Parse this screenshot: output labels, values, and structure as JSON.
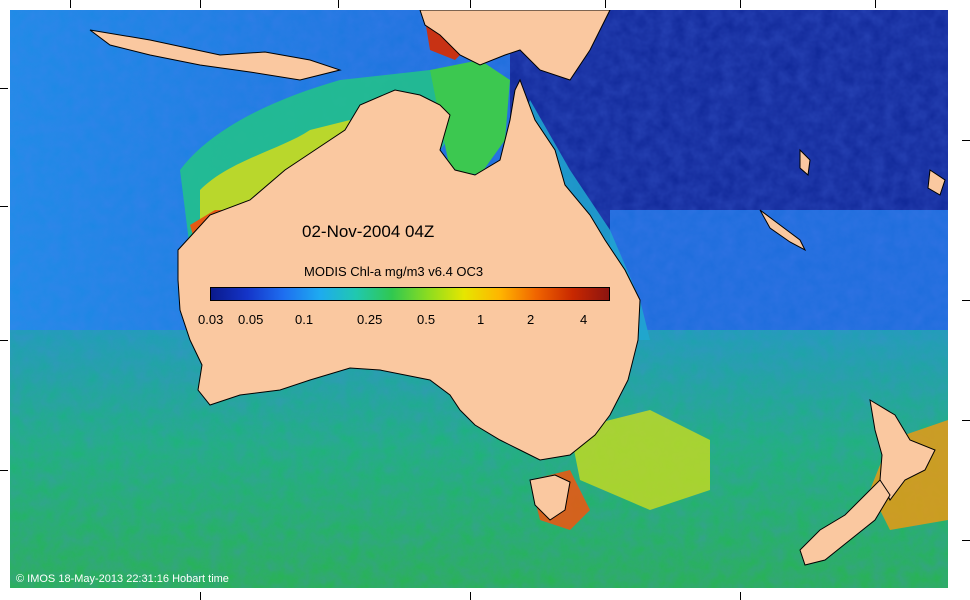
{
  "map": {
    "title": "02-Nov-2004 04Z",
    "product_label": "MODIS Chl-a mg/m3 v6.4 OC3",
    "credit": "© IMOS 18-May-2013 22:31:16 Hobart time",
    "colorbar": {
      "labels": [
        "0.03",
        "0.05",
        "0.1",
        "0.25",
        "0.5",
        "1",
        "2",
        "4"
      ],
      "colors": [
        "#0a1a8c",
        "#1434c8",
        "#1e6ef0",
        "#1eaaf0",
        "#20c8b0",
        "#30c850",
        "#8cdc20",
        "#e6e600",
        "#ffb400",
        "#f06400",
        "#c82800",
        "#8c1410"
      ]
    },
    "colors": {
      "land": "#fac8a0",
      "deep_ocean": "#122a9a",
      "open_ocean": "#1e64dc",
      "shelf": "#20b4c8",
      "southern_ocean": "#1eb464",
      "bloom_high": "#e65a14",
      "bloom_mid": "#dcdc14"
    }
  }
}
